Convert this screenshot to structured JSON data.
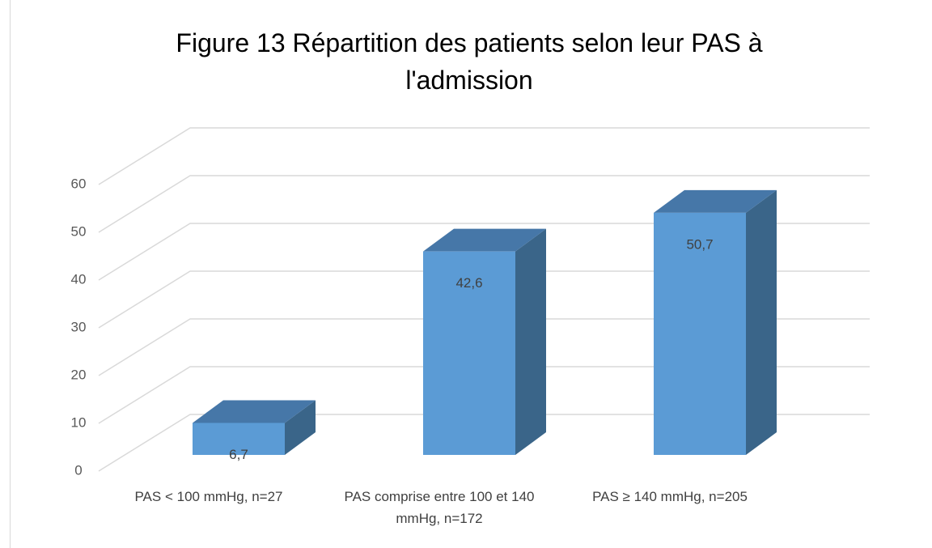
{
  "chart_data": {
    "type": "bar3d",
    "title": "Figure 13 Répartition des patients selon leur PAS à l'admission",
    "categories": [
      "PAS < 100 mmHg, n=27",
      "PAS comprise entre 100 et 140 mmHg, n=172",
      "PAS ≥ 140 mmHg, n=205"
    ],
    "values": [
      6.7,
      42.6,
      50.7
    ],
    "value_labels": [
      "6,7",
      "42,6",
      "50,7"
    ],
    "color": "#5b9bd5",
    "ylim": [
      0,
      60
    ],
    "yticks": [
      0,
      10,
      20,
      30,
      40,
      50,
      60
    ],
    "grid": true
  }
}
